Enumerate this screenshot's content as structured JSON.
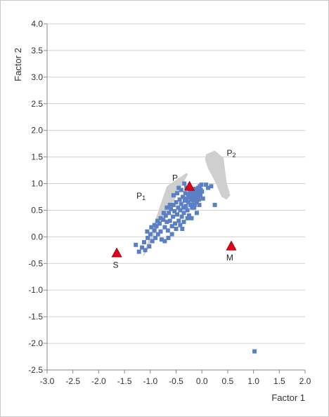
{
  "chart_data": {
    "type": "scatter",
    "title": "",
    "xlabel": "Factor 1",
    "ylabel": "Factor 2",
    "xlim": [
      -3.0,
      2.0
    ],
    "ylim": [
      -2.5,
      4.0
    ],
    "xticks": [
      "-3.0",
      "-2.5",
      "-2.0",
      "-1.5",
      "-1.0",
      "-0.5",
      "0.0",
      "0.5",
      "1.0",
      "1.5",
      "2.0"
    ],
    "yticks": [
      "4.0",
      "3.5",
      "3.0",
      "2.5",
      "2.0",
      "1.5",
      "1.0",
      "0.5",
      "0.0",
      "-0.5",
      "-1.0",
      "-1.5",
      "-2.0",
      "-2.5"
    ],
    "grid": "horizontal",
    "colors": {
      "samples": "#5b7fc4",
      "references": "#e0001b",
      "fields": "#cfcfcf"
    },
    "fields": [
      {
        "label": "P1",
        "label_at": [
          -1.18,
          0.72
        ],
        "polygon": [
          [
            -1.15,
            -0.38
          ],
          [
            -0.68,
            0.95
          ],
          [
            -0.3,
            1.2
          ],
          [
            -0.27,
            1.18
          ],
          [
            -0.52,
            0.72
          ],
          [
            -0.88,
            0.12
          ],
          [
            -1.05,
            -0.25
          ]
        ]
      },
      {
        "label": "P2",
        "label_at": [
          0.57,
          1.52
        ],
        "polygon": [
          [
            0.08,
            1.55
          ],
          [
            0.25,
            1.62
          ],
          [
            0.42,
            1.48
          ],
          [
            0.48,
            1.02
          ],
          [
            0.55,
            0.78
          ],
          [
            0.48,
            0.7
          ],
          [
            0.38,
            0.75
          ],
          [
            0.25,
            1.05
          ],
          [
            0.12,
            1.28
          ],
          [
            0.06,
            1.45
          ]
        ]
      }
    ],
    "references": [
      {
        "label": "P",
        "x": -0.24,
        "y": 0.95,
        "label_at": [
          -0.52,
          1.05
        ]
      },
      {
        "label": "S",
        "x": -1.65,
        "y": -0.3,
        "label_at": [
          -1.67,
          -0.58
        ]
      },
      {
        "label": "M",
        "x": 0.57,
        "y": -0.17,
        "label_at": [
          0.54,
          -0.44
        ]
      }
    ],
    "samples": [
      [
        -1.28,
        -0.15
      ],
      [
        -1.22,
        -0.28
      ],
      [
        -1.16,
        -0.2
      ],
      [
        -1.12,
        -0.1
      ],
      [
        -1.1,
        -0.25
      ],
      [
        -1.05,
        -0.02
      ],
      [
        -1.0,
        0.05
      ],
      [
        -1.02,
        -0.18
      ],
      [
        -0.96,
        -0.08
      ],
      [
        -0.92,
        0.12
      ],
      [
        -0.9,
        -0.02
      ],
      [
        -0.88,
        0.2
      ],
      [
        -0.85,
        0.05
      ],
      [
        -0.82,
        0.25
      ],
      [
        -0.8,
        0.1
      ],
      [
        -0.78,
        -0.05
      ],
      [
        -0.75,
        0.32
      ],
      [
        -0.72,
        0.18
      ],
      [
        -0.7,
        0.4
      ],
      [
        -0.68,
        0.28
      ],
      [
        -0.66,
        0.12
      ],
      [
        -0.64,
        0.45
      ],
      [
        -0.62,
        0.3
      ],
      [
        -0.6,
        0.52
      ],
      [
        -0.58,
        0.2
      ],
      [
        -0.56,
        0.38
      ],
      [
        -0.55,
        0.6
      ],
      [
        -0.53,
        0.48
      ],
      [
        -0.52,
        0.25
      ],
      [
        -0.5,
        0.65
      ],
      [
        -0.48,
        0.42
      ],
      [
        -0.46,
        0.55
      ],
      [
        -0.45,
        0.3
      ],
      [
        -0.43,
        0.7
      ],
      [
        -0.42,
        0.5
      ],
      [
        -0.4,
        0.62
      ],
      [
        -0.39,
        0.38
      ],
      [
        -0.37,
        0.75
      ],
      [
        -0.36,
        0.55
      ],
      [
        -0.35,
        0.45
      ],
      [
        -0.33,
        0.68
      ],
      [
        -0.32,
        0.82
      ],
      [
        -0.31,
        0.58
      ],
      [
        -0.3,
        0.72
      ],
      [
        -0.28,
        0.5
      ],
      [
        -0.27,
        0.8
      ],
      [
        -0.26,
        0.65
      ],
      [
        -0.25,
        0.4
      ],
      [
        -0.24,
        0.74
      ],
      [
        -0.23,
        0.85
      ],
      [
        -0.22,
        0.6
      ],
      [
        -0.21,
        0.7
      ],
      [
        -0.2,
        0.78
      ],
      [
        -0.19,
        0.55
      ],
      [
        -0.18,
        0.88
      ],
      [
        -0.17,
        0.68
      ],
      [
        -0.16,
        0.75
      ],
      [
        -0.15,
        0.82
      ],
      [
        -0.14,
        0.6
      ],
      [
        -0.13,
        0.9
      ],
      [
        -0.12,
        0.72
      ],
      [
        -0.11,
        0.8
      ],
      [
        -0.1,
        0.65
      ],
      [
        -0.09,
        0.87
      ],
      [
        -0.08,
        0.76
      ],
      [
        -0.07,
        0.92
      ],
      [
        -0.06,
        0.7
      ],
      [
        -0.05,
        0.83
      ],
      [
        -0.04,
        0.95
      ],
      [
        -0.03,
        0.78
      ],
      [
        -0.02,
        0.88
      ],
      [
        -0.01,
        0.98
      ],
      [
        0.0,
        0.85
      ],
      [
        -0.28,
        0.35
      ],
      [
        -0.35,
        0.28
      ],
      [
        -0.42,
        0.22
      ],
      [
        -0.5,
        0.15
      ],
      [
        -0.58,
        0.05
      ],
      [
        -0.65,
        -0.02
      ],
      [
        -0.72,
        -0.08
      ],
      [
        -0.62,
        0.6
      ],
      [
        -0.55,
        0.78
      ],
      [
        -0.48,
        0.82
      ],
      [
        -0.4,
        0.88
      ],
      [
        -0.3,
        0.92
      ],
      [
        -0.15,
        0.55
      ],
      [
        -0.05,
        0.6
      ],
      [
        -0.1,
        0.45
      ],
      [
        -0.2,
        0.35
      ],
      [
        -0.68,
        0.55
      ],
      [
        -0.74,
        0.45
      ],
      [
        -0.8,
        0.35
      ],
      [
        -0.86,
        0.3
      ],
      [
        -0.92,
        0.22
      ],
      [
        -1.06,
        0.1
      ],
      [
        -0.98,
        0.18
      ],
      [
        0.08,
        0.98
      ],
      [
        0.12,
        0.92
      ],
      [
        0.18,
        0.95
      ],
      [
        0.25,
        0.6
      ],
      [
        -0.45,
        0.92
      ],
      [
        -0.34,
        1.0
      ],
      [
        -0.38,
        0.15
      ],
      [
        0.02,
        0.72
      ],
      [
        1.02,
        -2.15
      ]
    ]
  }
}
